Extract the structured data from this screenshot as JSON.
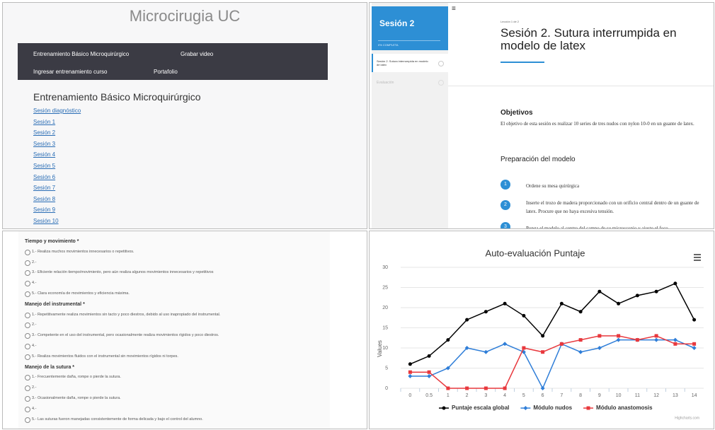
{
  "site": {
    "title": "Microcirugia UC",
    "nav": [
      "Entrenamiento Básico Microquirúrgico",
      "Grabar video",
      "Ingresar entrenamiento curso",
      "Portafolio"
    ],
    "heading": "Entrenamiento Básico Microquirúrgico",
    "links": [
      "Sesión diagnóstico",
      "Sesión 1",
      "Sesión 2",
      "Sesión 3",
      "Sesión 4",
      "Sesión 5",
      "Sesión 6",
      "Sesión 7",
      "Sesión 8",
      "Sesión 9",
      "Sesión 10"
    ]
  },
  "lesson": {
    "sidebar_title": "Sesión 2",
    "progress": "0% COMPLETA",
    "items": [
      "Sesión 2. Sutura interrumpida en modelo de latex",
      "Evaluación"
    ],
    "breadcrumb": "Lección 1 de 2",
    "title": "Sesión 2. Sutura interrumpida en modelo de latex",
    "objectives_heading": "Objetivos",
    "objectives_text": "El objetivo de esta sesión es realizar 10 series de tres nudos con nylon 10-0 en un guante de latex.",
    "model_heading": "Preparación del modelo",
    "steps": [
      {
        "number": 1,
        "text": "Ordene su mesa quirúrgica"
      },
      {
        "number": 2,
        "text": "Inserte el trozo de madera proporcionado con un orificio central dentro de un guante de latex. Procure que no haya excesiva tensión."
      },
      {
        "number": 3,
        "text": "Ponga el modelo al centro del campo de su microscopio y ajuste el foco"
      }
    ]
  },
  "form": {
    "groups": [
      {
        "title": "Tiempo y movimiento *",
        "options": [
          "1.- Realiza muchos movimientos innecesarios o repetitivos.",
          "2.-",
          "3.- Eficiente relación tiempo/movimiento, pero aún realiza algunos movimientos innecesarios y repetitivos",
          "4.-",
          "5.- Clara economía de movimientos y eficiencia máxima."
        ]
      },
      {
        "title": "Manejo del instrumental *",
        "options": [
          "1.- Repetitivamente realiza movimientos sin tacto y poco diestros, debido al uso inapropiado del instrumental.",
          "2.-",
          "3.- Competente en el uso del instrumental, pero ocasionalmente realiza movimientos rígidos y poco diestros.",
          "4.-",
          "5.- Realiza movimientos fluidos con el instrumental sin movimientos rígidos ni torpes."
        ]
      },
      {
        "title": "Manejo de la sutura *",
        "options": [
          "1.- Frecuentemente daña, rompe o pierde la sutura.",
          "2.-",
          "3.- Ocasionalmente daña, rompe o pierde la sutura.",
          "4.-",
          "5.- Las suturas fueron manejadas consistentemente de forma delicada y bajo el control del alumno."
        ]
      }
    ]
  },
  "chart_data": {
    "type": "line",
    "title": "Auto-evaluación Puntaje",
    "y_label": "Values",
    "credits": "Highcharts.com",
    "grid": true,
    "categories": [
      "0",
      "0.5",
      "1",
      "2",
      "3",
      "4",
      "5",
      "6",
      "7",
      "8",
      "9",
      "10",
      "11",
      "12",
      "13",
      "14"
    ],
    "ylim": [
      0,
      30
    ],
    "yticks": [
      0,
      5,
      10,
      15,
      20,
      25,
      30
    ],
    "series": [
      {
        "name": "Puntaje escala global",
        "color": "#000000",
        "marker": "circle",
        "values": [
          6,
          8,
          12,
          17,
          19,
          21,
          18,
          13,
          21,
          19,
          24,
          21,
          23,
          24,
          26,
          17
        ]
      },
      {
        "name": "Módulo nudos",
        "color": "#2f7ed8",
        "marker": "diamond",
        "values": [
          3,
          3,
          5,
          10,
          9,
          11,
          9,
          0,
          11,
          9,
          10,
          12,
          12,
          12,
          12,
          10
        ]
      },
      {
        "name": "Módulo anastomosis",
        "color": "#e8383d",
        "marker": "square",
        "values": [
          4,
          4,
          0,
          0,
          0,
          0,
          10,
          9,
          11,
          12,
          13,
          13,
          12,
          13,
          11,
          11
        ]
      }
    ]
  }
}
